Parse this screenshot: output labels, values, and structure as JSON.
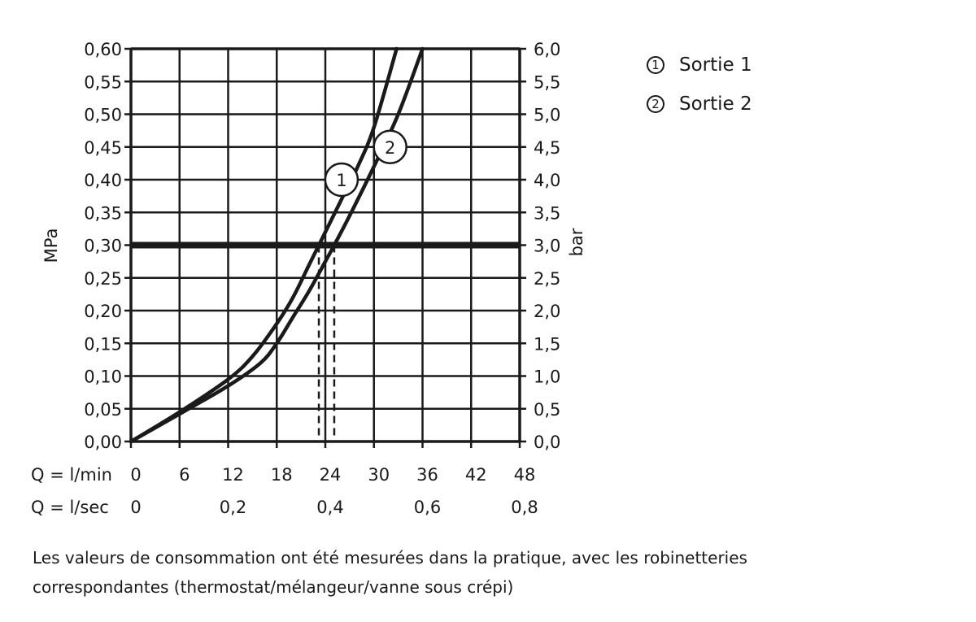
{
  "chart_data": {
    "type": "line",
    "title": "",
    "xlabel": "Q = l/min",
    "xlabel_secondary": "Q = l/sec",
    "ylabel": "MPa",
    "ylabel_right": "bar",
    "xlim": [
      0,
      48
    ],
    "ylim": [
      0,
      0.6
    ],
    "grid": true,
    "legend_position": "top-right (outside plot)",
    "x_ticks_lmin": [
      "0",
      "6",
      "12",
      "18",
      "24",
      "30",
      "36",
      "42",
      "48"
    ],
    "x_ticks_lsec": [
      {
        "at": 0,
        "label": "0"
      },
      {
        "at": 12,
        "label": "0,2"
      },
      {
        "at": 24,
        "label": "0,4"
      },
      {
        "at": 36,
        "label": "0,6"
      },
      {
        "at": 48,
        "label": "0,8"
      }
    ],
    "y_ticks_mpa": [
      "0,00",
      "0,05",
      "0,10",
      "0,15",
      "0,20",
      "0,25",
      "0,30",
      "0,35",
      "0,40",
      "0,45",
      "0,50",
      "0,55",
      "0,60"
    ],
    "y_ticks_bar": [
      "0,0",
      "0,5",
      "1,0",
      "1,5",
      "2,0",
      "2,5",
      "3,0",
      "3,5",
      "4,0",
      "4,5",
      "5,0",
      "5,5",
      "6,0"
    ],
    "series": [
      {
        "name": "Sortie 1",
        "marker": "1",
        "x": [
          0,
          6,
          12,
          15,
          18,
          20,
          22,
          23.2,
          24,
          26,
          28,
          30,
          32.8
        ],
        "y": [
          0,
          0.045,
          0.095,
          0.13,
          0.18,
          0.22,
          0.27,
          0.3,
          0.32,
          0.37,
          0.42,
          0.48,
          0.6
        ]
      },
      {
        "name": "Sortie 2",
        "marker": "2",
        "x": [
          0,
          6,
          12,
          16,
          18,
          20,
          22,
          24,
          25.1,
          27,
          30,
          33,
          36
        ],
        "y": [
          0,
          0.042,
          0.085,
          0.12,
          0.15,
          0.19,
          0.23,
          0.275,
          0.3,
          0.345,
          0.42,
          0.5,
          0.6
        ]
      }
    ],
    "reference_lines": [
      {
        "type": "horizontal",
        "y": 0.3,
        "label": "0,30 MPa / 3,0 bar",
        "style": "thick"
      },
      {
        "type": "vertical",
        "x": 24,
        "style": "solid"
      },
      {
        "type": "vertical",
        "x": 23.2,
        "style": "dashed",
        "series": "Sortie 1"
      },
      {
        "type": "vertical",
        "x": 25.1,
        "style": "dashed",
        "series": "Sortie 2"
      }
    ],
    "annotations": [
      {
        "text": "1",
        "x": 26.2,
        "y": 0.4,
        "shape": "circle"
      },
      {
        "text": "2",
        "x": 32,
        "y": 0.45,
        "shape": "circle"
      }
    ]
  },
  "legend": {
    "items": [
      {
        "num": "1",
        "label": "Sortie 1"
      },
      {
        "num": "2",
        "label": "Sortie 2"
      }
    ]
  },
  "footnote": {
    "line1": "Les valeurs de consommation ont été mesurées dans la pratique, avec les robinetteries",
    "line2": "correspondantes (thermostat/mélangeur/vanne sous crépi)"
  }
}
